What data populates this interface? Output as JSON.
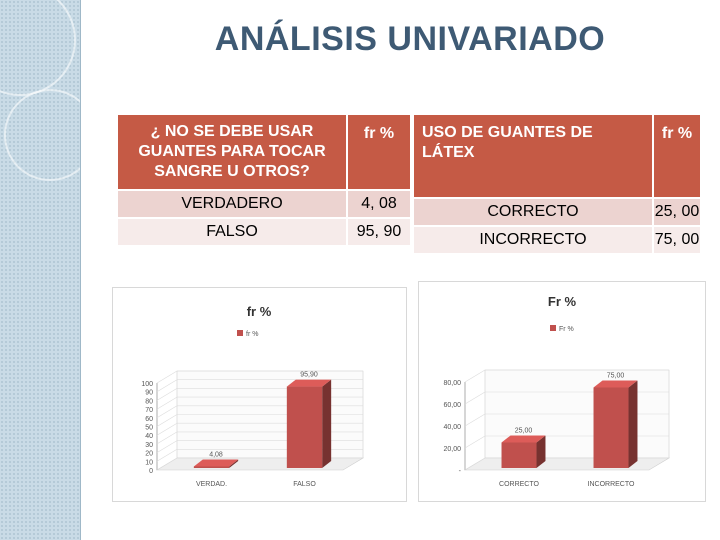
{
  "title": "ANÁLISIS UNIVARIADO",
  "table_left": {
    "header": [
      "¿ NO SE DEBE USAR GUANTES PARA TOCAR SANGRE U OTROS?",
      "fr %"
    ],
    "rows": [
      [
        "VERDADERO",
        "4, 08"
      ],
      [
        "FALSO",
        "95, 90"
      ]
    ]
  },
  "table_right": {
    "header": [
      "USO DE GUANTES DE LÁTEX",
      "fr %"
    ],
    "rows": [
      [
        "CORRECTO",
        "25, 00"
      ],
      [
        "INCORRECTO",
        "75, 00"
      ]
    ]
  },
  "colors": {
    "bar": "#c0504d",
    "header_fill": "#c55a45",
    "title": "#3e5a74"
  },
  "chart_data": [
    {
      "type": "bar",
      "title": "fr %",
      "legend": [
        "fr %"
      ],
      "categories": [
        "VERDAD.",
        "FALSO"
      ],
      "values": [
        4.08,
        95.9
      ],
      "data_labels": [
        "4,08",
        "95,90"
      ],
      "ylim": [
        0,
        100
      ],
      "yticks": [
        "0",
        "10",
        "20",
        "30",
        "40",
        "50",
        "60",
        "70",
        "80",
        "90",
        "100"
      ],
      "grid": true
    },
    {
      "type": "bar",
      "title": "Fr %",
      "legend": [
        "Fr %"
      ],
      "categories": [
        "CORRECTO",
        "INCORRECTO"
      ],
      "values": [
        25,
        75
      ],
      "data_labels": [
        "25,00",
        "75,00"
      ],
      "ylim": [
        0,
        80
      ],
      "yticks": [
        "-",
        "20,00",
        "40,00",
        "60,00",
        "80,00"
      ],
      "grid": true
    }
  ]
}
